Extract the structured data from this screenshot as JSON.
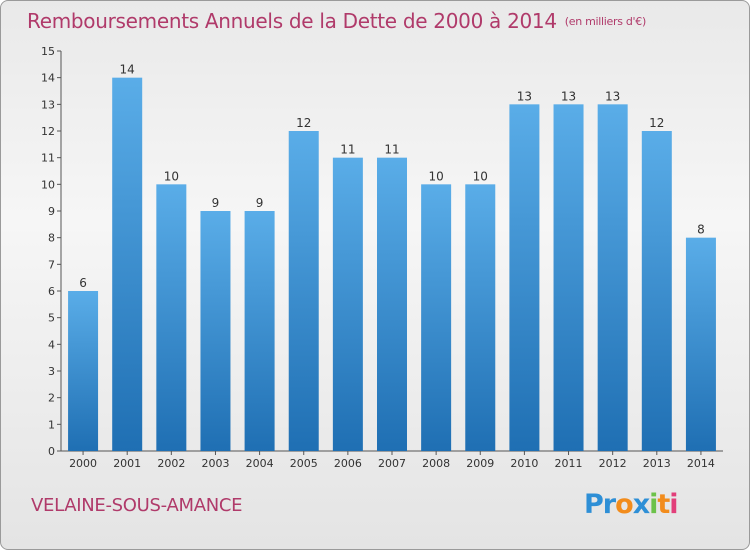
{
  "title": "Remboursements Annuels de la Dette de 2000 à 2014",
  "unit": "(en milliers d'€)",
  "commune": "VELAINE-SOUS-AMANCE",
  "logo": {
    "letters": [
      "P",
      "r",
      "o",
      "x",
      "i",
      "t",
      "i"
    ],
    "colors": [
      "#2e8fd6",
      "#2e8fd6",
      "#f28c1c",
      "#2e8fd6",
      "#6cc24a",
      "#f28c1c",
      "#e23f7a"
    ]
  },
  "colors": {
    "bar_top": "#5aade8",
    "bar_bottom": "#1f6fb3",
    "accent": "#b03a6a"
  },
  "chart_data": {
    "type": "bar",
    "categories": [
      "2000",
      "2001",
      "2002",
      "2003",
      "2004",
      "2005",
      "2006",
      "2007",
      "2008",
      "2009",
      "2010",
      "2011",
      "2012",
      "2013",
      "2014"
    ],
    "values": [
      6,
      14,
      10,
      9,
      9,
      12,
      11,
      11,
      10,
      10,
      13,
      13,
      13,
      12,
      8
    ],
    "ylim": [
      0,
      15
    ],
    "yticks": [
      0,
      1,
      2,
      3,
      4,
      5,
      6,
      7,
      8,
      9,
      10,
      11,
      12,
      13,
      14,
      15
    ],
    "grid": false,
    "data_labels": true
  }
}
